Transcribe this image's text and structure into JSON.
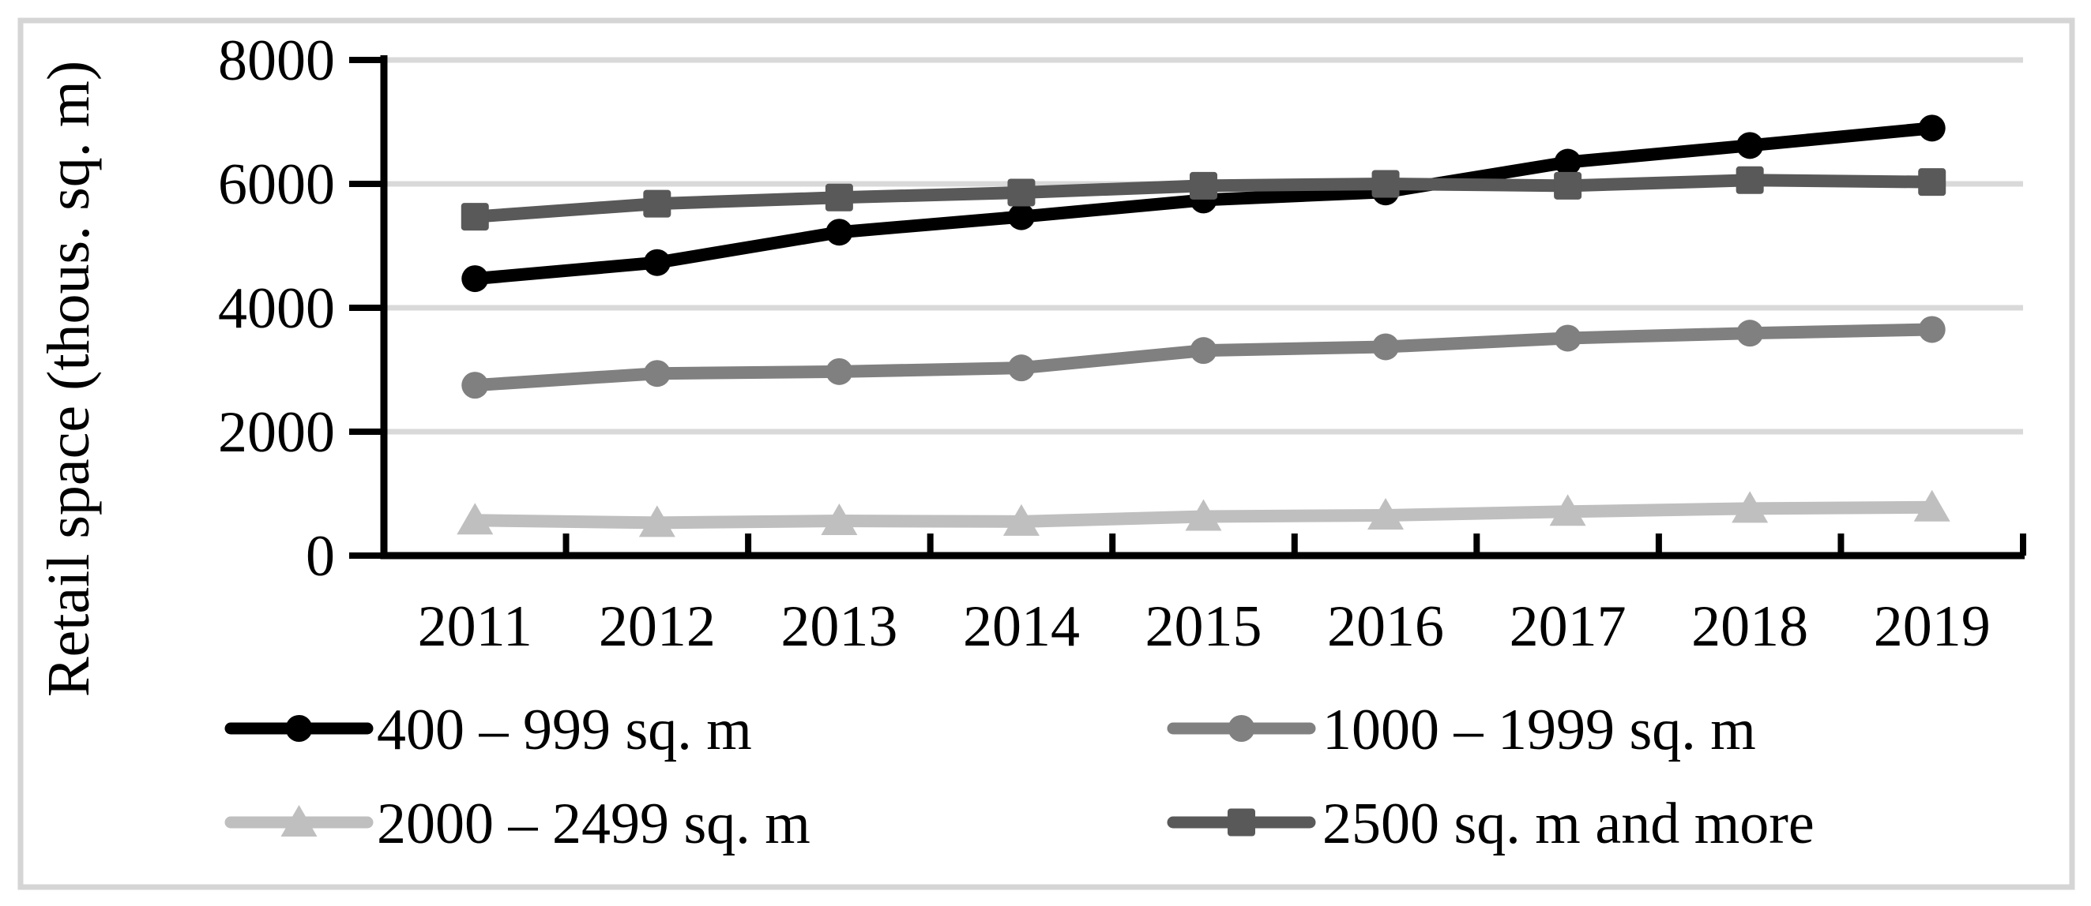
{
  "figure": {
    "border_color": "#D5D5D5",
    "background": "#FFFFFF"
  },
  "chart_data": {
    "type": "line",
    "title": "",
    "ylabel": "Retail space (thous. sq. m)",
    "xlabel": "",
    "categories": [
      "2011",
      "2012",
      "2013",
      "2014",
      "2015",
      "2016",
      "2017",
      "2018",
      "2019"
    ],
    "ylim": [
      0,
      8000
    ],
    "yticks": [
      0,
      2000,
      4000,
      6000,
      8000
    ],
    "grid": "horizontal",
    "gridline_color": "#D9D9D9",
    "axis_color": "#000000",
    "legend_position": "bottom-two-columns",
    "series": [
      {
        "name": "400 – 999 sq. m",
        "marker": "circle",
        "color": "#000000",
        "values": [
          4470,
          4730,
          5220,
          5470,
          5740,
          5870,
          6350,
          6620,
          6900
        ]
      },
      {
        "name": "1000 – 1999 sq. m",
        "marker": "circle",
        "color": "#808080",
        "values": [
          2750,
          2940,
          2970,
          3030,
          3310,
          3370,
          3510,
          3590,
          3650
        ]
      },
      {
        "name": "2000 – 2499 sq. m",
        "marker": "triangle",
        "color": "#BFBFBF",
        "values": [
          570,
          530,
          560,
          550,
          630,
          650,
          710,
          760,
          780
        ]
      },
      {
        "name": "2500 sq. m and more",
        "marker": "square",
        "color": "#595959",
        "values": [
          5470,
          5680,
          5780,
          5860,
          5970,
          6000,
          5970,
          6060,
          6030
        ]
      }
    ]
  }
}
